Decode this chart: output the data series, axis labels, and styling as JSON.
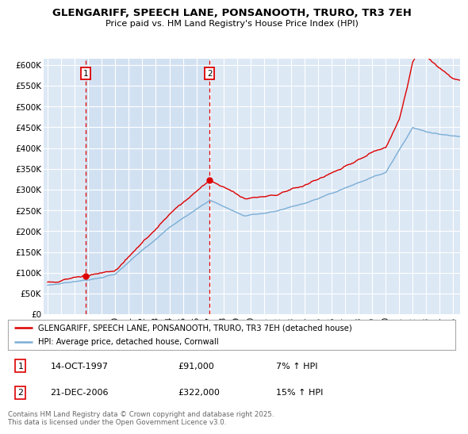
{
  "title": "GLENGARIFF, SPEECH LANE, PONSANOOTH, TRURO, TR3 7EH",
  "subtitle": "Price paid vs. HM Land Registry's House Price Index (HPI)",
  "plot_bg_color": "#dde8f5",
  "ylabel_values": [
    0,
    50000,
    100000,
    150000,
    200000,
    250000,
    300000,
    350000,
    400000,
    450000,
    500000,
    550000,
    600000
  ],
  "ylabel_labels": [
    "£0",
    "£50K",
    "£100K",
    "£150K",
    "£200K",
    "£250K",
    "£300K",
    "£350K",
    "£400K",
    "£450K",
    "£500K",
    "£550K",
    "£600K"
  ],
  "ylim": [
    0,
    615000
  ],
  "xlim_start": 1994.7,
  "xlim_end": 2025.5,
  "purchase1_x": 1997.79,
  "purchase1_y": 91000,
  "purchase2_x": 2006.97,
  "purchase2_y": 322000,
  "red_line_color": "#dd0000",
  "blue_line_color": "#7aaed6",
  "grid_color": "#ffffff",
  "legend_entry1": "GLENGARIFF, SPEECH LANE, PONSANOOTH, TRURO, TR3 7EH (detached house)",
  "legend_entry2": "HPI: Average price, detached house, Cornwall",
  "note1_label": "1",
  "note1_date": "14-OCT-1997",
  "note1_price": "£91,000",
  "note1_hpi": "7% ↑ HPI",
  "note2_label": "2",
  "note2_date": "21-DEC-2006",
  "note2_price": "£322,000",
  "note2_hpi": "15% ↑ HPI",
  "footer": "Contains HM Land Registry data © Crown copyright and database right 2025.\nThis data is licensed under the Open Government Licence v3.0.",
  "xtick_years": [
    1995,
    1996,
    1997,
    1998,
    1999,
    2000,
    2001,
    2002,
    2003,
    2004,
    2005,
    2006,
    2007,
    2008,
    2009,
    2010,
    2011,
    2012,
    2013,
    2014,
    2015,
    2016,
    2017,
    2018,
    2019,
    2020,
    2021,
    2022,
    2023,
    2024,
    2025
  ]
}
